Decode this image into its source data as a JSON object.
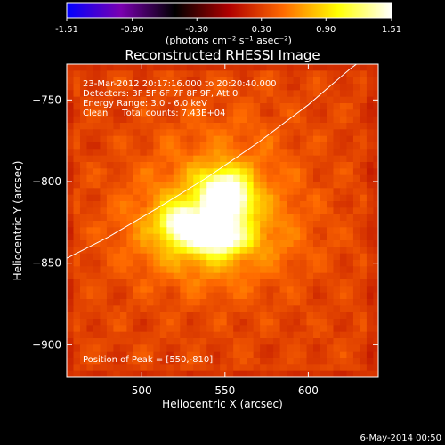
{
  "chart_data": {
    "type": "heatmap",
    "title": "Reconstructed RHESSI Image",
    "xlabel": "Heliocentric X (arcsec)",
    "ylabel": "Heliocentric Y (arcsec)",
    "xlim": [
      455,
      642
    ],
    "ylim": [
      -920,
      -728
    ],
    "x_ticks": [
      500,
      550,
      600
    ],
    "y_ticks": [
      -750,
      -800,
      -850,
      -900
    ],
    "grid": false,
    "colorbar": {
      "min": -1.51,
      "max": 1.51,
      "tick_values": [
        -1.51,
        -0.9,
        -0.3,
        0.3,
        0.9,
        1.51
      ],
      "tick_labels": [
        "-1.51",
        "-0.90",
        "-0.30",
        "0.30",
        "0.90",
        "1.51"
      ],
      "unit_label": "(photons cm⁻² s⁻¹ asec⁻²)",
      "stops": [
        "#0000ff",
        "#7a00b0",
        "#000000",
        "#b00000",
        "#ff6a00",
        "#ffff00",
        "#ffffff"
      ]
    },
    "annotations": [
      "23-Mar-2012 20:17:16.000 to 20:20:40.000",
      "Detectors: 3F 5F 6F 7F 8F 9F, Att 0",
      "Energy Range: 3.0 - 6.0 keV",
      "Clean     Total counts: 7.43E+04"
    ],
    "peak_label": "Position of Peak = [550,-810]",
    "sources": [
      {
        "x": 550,
        "y": -810,
        "peak": 1.51,
        "sigma_x": 9,
        "sigma_y": 10
      },
      {
        "x": 525,
        "y": -826,
        "peak": 1.05,
        "sigma_x": 8,
        "sigma_y": 7
      },
      {
        "x": 545,
        "y": -835,
        "peak": 1.0,
        "sigma_x": 11,
        "sigma_y": 6
      }
    ],
    "limb_curve": {
      "x": [
        455,
        480,
        510,
        540,
        570,
        600,
        625,
        642
      ],
      "y": [
        -847,
        -834,
        -816,
        -797,
        -776,
        -753,
        -731,
        -718
      ]
    },
    "background_level": 0.32,
    "footer_date": "6-May-2014 00:50"
  }
}
